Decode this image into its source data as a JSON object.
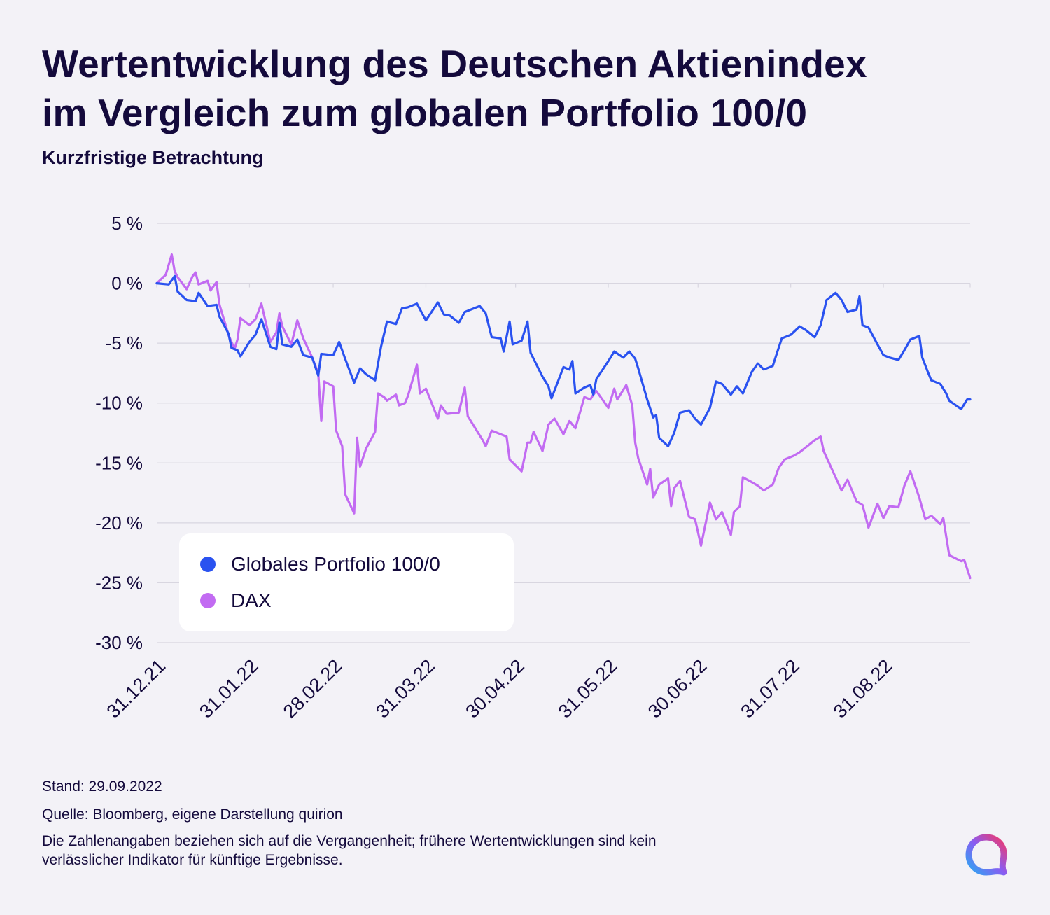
{
  "title_line1": "Wertentwicklung des Deutschen Aktienindex",
  "title_line2": "im Vergleich zum globalen Portfolio 100/0",
  "subtitle": "Kurzfristige Betrachtung",
  "footer": {
    "stand": "Stand: 29.09.2022",
    "quelle": "Quelle: Bloomberg, eigene Darstellung quirion",
    "disclaimer_line1": "Die Zahlenangaben beziehen sich auf die Vergangenheit; frühere Wertentwicklungen sind kein",
    "disclaimer_line2": "verlässlicher Indikator für künftige Ergebnisse."
  },
  "logo_icon": "quirion-logo-icon",
  "chart_data": {
    "type": "line",
    "x_label_dates": [
      "31.12.21",
      "31.01.22",
      "28.02.22",
      "31.03.22",
      "30.04.22",
      "31.05.22",
      "30.06.22",
      "31.07.22",
      "31.08.22"
    ],
    "y_tick_labels": [
      "5 %",
      "0 %",
      "-5 %",
      "-10 %",
      "-15 %",
      "-20 %",
      "-25 %",
      "-30 %"
    ],
    "y_ticks": [
      5,
      0,
      -5,
      -10,
      -15,
      -20,
      -25,
      -30
    ],
    "ylim": [
      -30,
      5
    ],
    "x_start": "2021-12-31",
    "x_end": "2022-09-29",
    "grid": true,
    "legend_position": "bottom-left",
    "series": [
      {
        "name": "Globales Portfolio 100/0",
        "color": "#2a52f0",
        "points": [
          [
            "2021-12-31",
            0.0
          ],
          [
            "2022-01-04",
            -0.1
          ],
          [
            "2022-01-06",
            0.6
          ],
          [
            "2022-01-07",
            -0.7
          ],
          [
            "2022-01-10",
            -1.4
          ],
          [
            "2022-01-13",
            -1.5
          ],
          [
            "2022-01-14",
            -0.8
          ],
          [
            "2022-01-17",
            -1.9
          ],
          [
            "2022-01-20",
            -1.8
          ],
          [
            "2022-01-21",
            -2.8
          ],
          [
            "2022-01-24",
            -4.2
          ],
          [
            "2022-01-25",
            -5.4
          ],
          [
            "2022-01-27",
            -5.6
          ],
          [
            "2022-01-28",
            -6.1
          ],
          [
            "2022-01-31",
            -4.9
          ],
          [
            "2022-02-02",
            -4.3
          ],
          [
            "2022-02-04",
            -3.0
          ],
          [
            "2022-02-07",
            -5.3
          ],
          [
            "2022-02-09",
            -5.5
          ],
          [
            "2022-02-10",
            -3.3
          ],
          [
            "2022-02-11",
            -5.1
          ],
          [
            "2022-02-14",
            -5.3
          ],
          [
            "2022-02-16",
            -4.7
          ],
          [
            "2022-02-18",
            -6.0
          ],
          [
            "2022-02-21",
            -6.2
          ],
          [
            "2022-02-23",
            -7.7
          ],
          [
            "2022-02-24",
            -5.9
          ],
          [
            "2022-02-28",
            -6.0
          ],
          [
            "2022-03-02",
            -4.9
          ],
          [
            "2022-03-04",
            -6.3
          ],
          [
            "2022-03-07",
            -8.3
          ],
          [
            "2022-03-09",
            -7.1
          ],
          [
            "2022-03-11",
            -7.6
          ],
          [
            "2022-03-14",
            -8.1
          ],
          [
            "2022-03-16",
            -5.3
          ],
          [
            "2022-03-18",
            -3.2
          ],
          [
            "2022-03-21",
            -3.4
          ],
          [
            "2022-03-23",
            -2.1
          ],
          [
            "2022-03-25",
            -2.0
          ],
          [
            "2022-03-28",
            -1.7
          ],
          [
            "2022-03-31",
            -3.1
          ],
          [
            "2022-04-04",
            -1.6
          ],
          [
            "2022-04-06",
            -2.6
          ],
          [
            "2022-04-08",
            -2.7
          ],
          [
            "2022-04-11",
            -3.3
          ],
          [
            "2022-04-13",
            -2.4
          ],
          [
            "2022-04-18",
            -1.9
          ],
          [
            "2022-04-20",
            -2.5
          ],
          [
            "2022-04-22",
            -4.5
          ],
          [
            "2022-04-25",
            -4.6
          ],
          [
            "2022-04-26",
            -5.7
          ],
          [
            "2022-04-28",
            -3.2
          ],
          [
            "2022-04-29",
            -5.1
          ],
          [
            "2022-05-02",
            -4.8
          ],
          [
            "2022-05-04",
            -3.2
          ],
          [
            "2022-05-05",
            -5.8
          ],
          [
            "2022-05-09",
            -7.8
          ],
          [
            "2022-05-11",
            -8.6
          ],
          [
            "2022-05-12",
            -9.6
          ],
          [
            "2022-05-16",
            -7.0
          ],
          [
            "2022-05-18",
            -7.2
          ],
          [
            "2022-05-19",
            -6.5
          ],
          [
            "2022-05-20",
            -9.2
          ],
          [
            "2022-05-23",
            -8.7
          ],
          [
            "2022-05-25",
            -8.5
          ],
          [
            "2022-05-26",
            -9.3
          ],
          [
            "2022-05-27",
            -8.0
          ],
          [
            "2022-05-31",
            -6.5
          ],
          [
            "2022-06-02",
            -5.7
          ],
          [
            "2022-06-05",
            -6.2
          ],
          [
            "2022-06-07",
            -5.7
          ],
          [
            "2022-06-09",
            -6.3
          ],
          [
            "2022-06-10",
            -7.1
          ],
          [
            "2022-06-13",
            -9.7
          ],
          [
            "2022-06-15",
            -11.2
          ],
          [
            "2022-06-16",
            -11.0
          ],
          [
            "2022-06-17",
            -12.9
          ],
          [
            "2022-06-20",
            -13.6
          ],
          [
            "2022-06-22",
            -12.5
          ],
          [
            "2022-06-24",
            -10.8
          ],
          [
            "2022-06-27",
            -10.6
          ],
          [
            "2022-06-29",
            -11.3
          ],
          [
            "2022-07-01",
            -11.8
          ],
          [
            "2022-07-04",
            -10.4
          ],
          [
            "2022-07-06",
            -8.2
          ],
          [
            "2022-07-08",
            -8.4
          ],
          [
            "2022-07-11",
            -9.3
          ],
          [
            "2022-07-13",
            -8.6
          ],
          [
            "2022-07-15",
            -9.2
          ],
          [
            "2022-07-18",
            -7.4
          ],
          [
            "2022-07-20",
            -6.7
          ],
          [
            "2022-07-22",
            -7.2
          ],
          [
            "2022-07-25",
            -6.9
          ],
          [
            "2022-07-28",
            -4.6
          ],
          [
            "2022-07-31",
            -4.3
          ],
          [
            "2022-08-03",
            -3.6
          ],
          [
            "2022-08-05",
            -3.9
          ],
          [
            "2022-08-08",
            -4.5
          ],
          [
            "2022-08-10",
            -3.5
          ],
          [
            "2022-08-12",
            -1.4
          ],
          [
            "2022-08-15",
            -0.8
          ],
          [
            "2022-08-17",
            -1.4
          ],
          [
            "2022-08-19",
            -2.4
          ],
          [
            "2022-08-22",
            -2.2
          ],
          [
            "2022-08-23",
            -1.1
          ],
          [
            "2022-08-24",
            -3.5
          ],
          [
            "2022-08-26",
            -3.7
          ],
          [
            "2022-08-29",
            -5.1
          ],
          [
            "2022-08-31",
            -6.0
          ],
          [
            "2022-09-02",
            -6.2
          ],
          [
            "2022-09-05",
            -6.4
          ],
          [
            "2022-09-07",
            -5.6
          ],
          [
            "2022-09-09",
            -4.7
          ],
          [
            "2022-09-12",
            -4.4
          ],
          [
            "2022-09-13",
            -6.2
          ],
          [
            "2022-09-15",
            -7.5
          ],
          [
            "2022-09-16",
            -8.1
          ],
          [
            "2022-09-19",
            -8.4
          ],
          [
            "2022-09-21",
            -9.2
          ],
          [
            "2022-09-22",
            -9.8
          ],
          [
            "2022-09-26",
            -10.5
          ],
          [
            "2022-09-28",
            -9.7
          ],
          [
            "2022-09-29",
            -9.7
          ]
        ]
      },
      {
        "name": "DAX",
        "color": "#c26bf2",
        "points": [
          [
            "2021-12-31",
            0.0
          ],
          [
            "2022-01-03",
            0.7
          ],
          [
            "2022-01-05",
            2.4
          ],
          [
            "2022-01-06",
            1.0
          ],
          [
            "2022-01-07",
            0.5
          ],
          [
            "2022-01-10",
            -0.5
          ],
          [
            "2022-01-12",
            0.6
          ],
          [
            "2022-01-13",
            0.9
          ],
          [
            "2022-01-14",
            -0.1
          ],
          [
            "2022-01-17",
            0.2
          ],
          [
            "2022-01-18",
            -0.6
          ],
          [
            "2022-01-20",
            0.1
          ],
          [
            "2022-01-21",
            -1.8
          ],
          [
            "2022-01-24",
            -4.3
          ],
          [
            "2022-01-26",
            -5.5
          ],
          [
            "2022-01-27",
            -4.7
          ],
          [
            "2022-01-28",
            -2.9
          ],
          [
            "2022-01-31",
            -3.5
          ],
          [
            "2022-02-02",
            -3.0
          ],
          [
            "2022-02-04",
            -1.7
          ],
          [
            "2022-02-07",
            -4.9
          ],
          [
            "2022-02-09",
            -4.1
          ],
          [
            "2022-02-10",
            -2.5
          ],
          [
            "2022-02-11",
            -3.6
          ],
          [
            "2022-02-14",
            -5.1
          ],
          [
            "2022-02-16",
            -3.1
          ],
          [
            "2022-02-18",
            -4.6
          ],
          [
            "2022-02-21",
            -6.2
          ],
          [
            "2022-02-23",
            -7.5
          ],
          [
            "2022-02-24",
            -11.5
          ],
          [
            "2022-02-25",
            -8.2
          ],
          [
            "2022-02-28",
            -8.6
          ],
          [
            "2022-03-01",
            -12.3
          ],
          [
            "2022-03-03",
            -13.6
          ],
          [
            "2022-03-04",
            -17.6
          ],
          [
            "2022-03-07",
            -19.2
          ],
          [
            "2022-03-08",
            -12.9
          ],
          [
            "2022-03-09",
            -15.3
          ],
          [
            "2022-03-11",
            -13.8
          ],
          [
            "2022-03-14",
            -12.4
          ],
          [
            "2022-03-15",
            -9.2
          ],
          [
            "2022-03-17",
            -9.5
          ],
          [
            "2022-03-18",
            -9.8
          ],
          [
            "2022-03-21",
            -9.3
          ],
          [
            "2022-03-22",
            -10.2
          ],
          [
            "2022-03-24",
            -10.0
          ],
          [
            "2022-03-25",
            -9.4
          ],
          [
            "2022-03-28",
            -6.8
          ],
          [
            "2022-03-29",
            -9.2
          ],
          [
            "2022-03-31",
            -8.8
          ],
          [
            "2022-04-04",
            -11.3
          ],
          [
            "2022-04-05",
            -10.2
          ],
          [
            "2022-04-07",
            -10.9
          ],
          [
            "2022-04-11",
            -10.8
          ],
          [
            "2022-04-13",
            -8.7
          ],
          [
            "2022-04-14",
            -11.1
          ],
          [
            "2022-04-19",
            -13.1
          ],
          [
            "2022-04-20",
            -13.6
          ],
          [
            "2022-04-22",
            -12.3
          ],
          [
            "2022-04-25",
            -12.6
          ],
          [
            "2022-04-27",
            -12.8
          ],
          [
            "2022-04-28",
            -14.7
          ],
          [
            "2022-05-02",
            -15.7
          ],
          [
            "2022-05-04",
            -13.3
          ],
          [
            "2022-05-05",
            -13.3
          ],
          [
            "2022-05-06",
            -12.4
          ],
          [
            "2022-05-09",
            -14.0
          ],
          [
            "2022-05-10",
            -12.9
          ],
          [
            "2022-05-11",
            -11.8
          ],
          [
            "2022-05-13",
            -11.3
          ],
          [
            "2022-05-16",
            -12.6
          ],
          [
            "2022-05-18",
            -11.5
          ],
          [
            "2022-05-20",
            -12.1
          ],
          [
            "2022-05-23",
            -9.5
          ],
          [
            "2022-05-25",
            -9.7
          ],
          [
            "2022-05-26",
            -9.3
          ],
          [
            "2022-05-27",
            -9.0
          ],
          [
            "2022-05-31",
            -10.4
          ],
          [
            "2022-06-02",
            -8.8
          ],
          [
            "2022-06-03",
            -9.7
          ],
          [
            "2022-06-06",
            -8.5
          ],
          [
            "2022-06-08",
            -10.2
          ],
          [
            "2022-06-09",
            -13.3
          ],
          [
            "2022-06-10",
            -14.6
          ],
          [
            "2022-06-13",
            -16.8
          ],
          [
            "2022-06-14",
            -15.5
          ],
          [
            "2022-06-15",
            -17.9
          ],
          [
            "2022-06-17",
            -16.8
          ],
          [
            "2022-06-20",
            -16.3
          ],
          [
            "2022-06-21",
            -18.6
          ],
          [
            "2022-06-22",
            -17.1
          ],
          [
            "2022-06-24",
            -16.5
          ],
          [
            "2022-06-27",
            -19.5
          ],
          [
            "2022-06-29",
            -19.7
          ],
          [
            "2022-07-01",
            -21.9
          ],
          [
            "2022-07-04",
            -18.3
          ],
          [
            "2022-07-06",
            -19.7
          ],
          [
            "2022-07-08",
            -19.1
          ],
          [
            "2022-07-11",
            -21.0
          ],
          [
            "2022-07-12",
            -19.1
          ],
          [
            "2022-07-14",
            -18.6
          ],
          [
            "2022-07-15",
            -16.2
          ],
          [
            "2022-07-18",
            -16.6
          ],
          [
            "2022-07-20",
            -16.9
          ],
          [
            "2022-07-22",
            -17.3
          ],
          [
            "2022-07-25",
            -16.8
          ],
          [
            "2022-07-27",
            -15.4
          ],
          [
            "2022-07-29",
            -14.7
          ],
          [
            "2022-08-01",
            -14.4
          ],
          [
            "2022-08-03",
            -14.1
          ],
          [
            "2022-08-04",
            -13.9
          ],
          [
            "2022-08-08",
            -13.1
          ],
          [
            "2022-08-10",
            -12.8
          ],
          [
            "2022-08-11",
            -14.0
          ],
          [
            "2022-08-15",
            -16.2
          ],
          [
            "2022-08-17",
            -17.3
          ],
          [
            "2022-08-19",
            -16.4
          ],
          [
            "2022-08-22",
            -18.2
          ],
          [
            "2022-08-24",
            -18.5
          ],
          [
            "2022-08-26",
            -20.4
          ],
          [
            "2022-08-29",
            -18.4
          ],
          [
            "2022-08-31",
            -19.6
          ],
          [
            "2022-09-02",
            -18.6
          ],
          [
            "2022-09-05",
            -18.7
          ],
          [
            "2022-09-07",
            -16.9
          ],
          [
            "2022-09-09",
            -15.7
          ],
          [
            "2022-09-12",
            -17.9
          ],
          [
            "2022-09-14",
            -19.7
          ],
          [
            "2022-09-16",
            -19.4
          ],
          [
            "2022-09-19",
            -20.1
          ],
          [
            "2022-09-20",
            -19.6
          ],
          [
            "2022-09-22",
            -22.7
          ],
          [
            "2022-09-26",
            -23.2
          ],
          [
            "2022-09-27",
            -23.1
          ],
          [
            "2022-09-29",
            -24.6
          ]
        ]
      }
    ]
  }
}
